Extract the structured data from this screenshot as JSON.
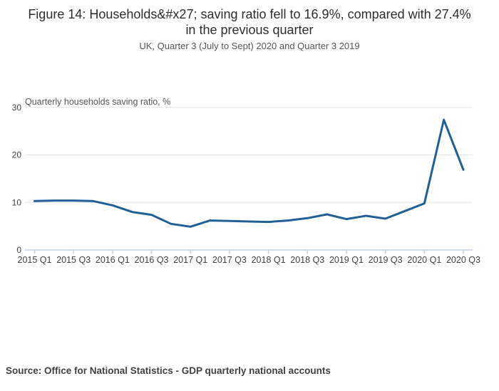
{
  "figure": {
    "title": "Figure 14: Households&#x27; saving ratio fell to 16.9%, compared with 27.4% in the previous quarter",
    "subtitle": "UK, Quarter 3 (July to Sept) 2020 and Quarter 3 2019",
    "source": "Source: Office for National Statistics - GDP quarterly national accounts"
  },
  "chart_data": {
    "type": "line",
    "title": "Figure 14: Households&#x27; saving ratio fell to 16.9%, compared with 27.4% in the previous quarter",
    "subtitle": "UK, Quarter 3 (July to Sept) 2020 and Quarter 3 2019",
    "series_label": "Quarterly households saving ratio, %",
    "categories": [
      "2015 Q1",
      "2015 Q2",
      "2015 Q3",
      "2015 Q4",
      "2016 Q1",
      "2016 Q2",
      "2016 Q3",
      "2016 Q4",
      "2017 Q1",
      "2017 Q2",
      "2017 Q3",
      "2017 Q4",
      "2018 Q1",
      "2018 Q2",
      "2018 Q3",
      "2018 Q4",
      "2019 Q1",
      "2019 Q2",
      "2019 Q3",
      "2019 Q4",
      "2020 Q1",
      "2020 Q2",
      "2020 Q3"
    ],
    "values": [
      10.3,
      10.4,
      10.4,
      10.3,
      9.4,
      8.0,
      7.4,
      5.5,
      4.9,
      6.2,
      6.1,
      6.0,
      5.9,
      6.2,
      6.7,
      7.5,
      6.5,
      7.2,
      6.6,
      8.2,
      9.8,
      27.4,
      16.9
    ],
    "x_tick_labels": [
      "2015 Q1",
      "2015 Q3",
      "2016 Q1",
      "2016 Q3",
      "2017 Q1",
      "2017 Q3",
      "2018 Q1",
      "2018 Q3",
      "2019 Q1",
      "2019 Q3",
      "2020 Q1",
      "2020 Q3"
    ],
    "xlabel": "",
    "ylabel": "Quarterly households saving ratio, %",
    "ylim": [
      0,
      30
    ],
    "y_ticks": [
      0,
      10,
      20,
      30
    ],
    "grid": "horizontal",
    "legend": "none",
    "source": "Source: Office for National Statistics - GDP quarterly national accounts",
    "colors": {
      "line": "#206095",
      "gridline": "#e3e3e3",
      "axis": "#c4d2e0",
      "tick_text": "#414042",
      "series_label_text": "#565656"
    }
  }
}
